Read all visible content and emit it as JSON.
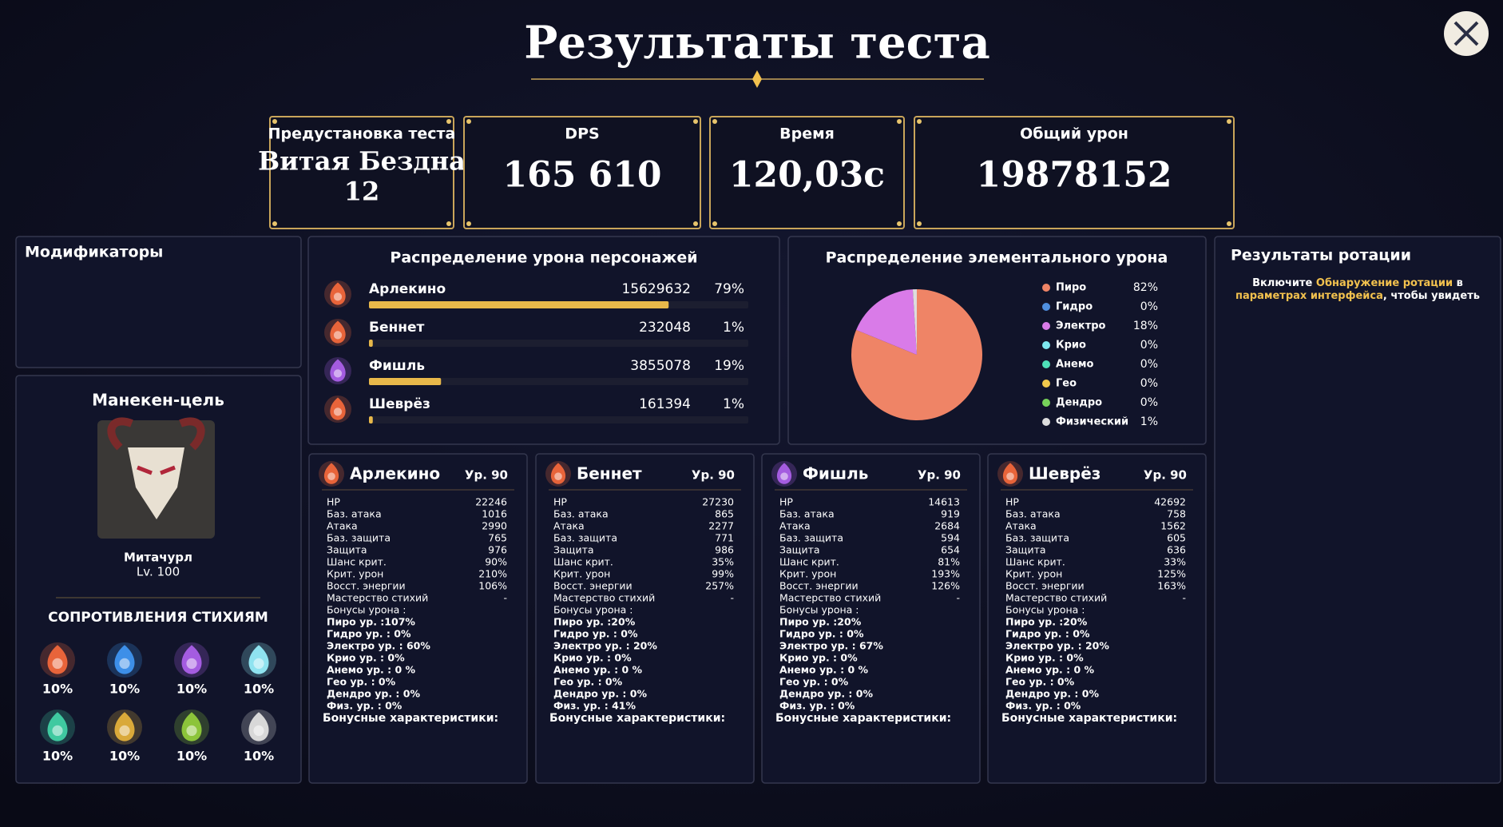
{
  "header": {
    "title": "Результаты теста"
  },
  "summary": [
    {
      "label": "Предустановка теста",
      "value": [
        "Витая Бездна",
        "12"
      ]
    },
    {
      "label": "DPS",
      "value": "165 610"
    },
    {
      "label": "Время",
      "value": "120,03с"
    },
    {
      "label": "Общий урон",
      "value": "19878152"
    }
  ],
  "modifiers": {
    "title": "Модификаторы"
  },
  "target": {
    "title": "Манекен-цель",
    "name": "Митачурл",
    "level": "Lv. 100",
    "resistances_title": "СОПРОТИВЛЕНИЯ СТИХИЯМ",
    "resistances": [
      {
        "label": "10%",
        "color": "#e8643a"
      },
      {
        "label": "10%",
        "color": "#3d8fe8"
      },
      {
        "label": "10%",
        "color": "#a45ce0"
      },
      {
        "label": "10%",
        "color": "#8fe3f0"
      },
      {
        "label": "10%",
        "color": "#3fc9a0"
      },
      {
        "label": "10%",
        "color": "#d9a93a"
      },
      {
        "label": "10%",
        "color": "#8cc43a"
      },
      {
        "label": "10%",
        "color": "#d8d8d8"
      }
    ]
  },
  "damage": {
    "title": "Распределение урона персонажей",
    "bar_color": "#e8b84a",
    "rows": [
      {
        "name": "Арлекино",
        "damage": "15629632",
        "value": 79,
        "value_label": "79%",
        "icon_color": "#e8643a"
      },
      {
        "name": "Беннет",
        "damage": "232048",
        "value": 1,
        "value_label": "1%",
        "icon_color": "#e8643a"
      },
      {
        "name": "Фишль",
        "damage": "3855078",
        "value": 19,
        "value_label": "19%",
        "icon_color": "#a45ce0"
      },
      {
        "name": "Шеврёз",
        "damage": "161394",
        "value": 1,
        "value_label": "1%",
        "icon_color": "#e8643a"
      }
    ]
  },
  "elements": {
    "title": "Распределение элементального урона",
    "type": "pie",
    "names": [
      "Пиро",
      "Гидро",
      "Электро",
      "Крио",
      "Анемо",
      "Гео",
      "Дендро",
      "Физический"
    ],
    "values": [
      82,
      0,
      18,
      0,
      0,
      0,
      0,
      1
    ],
    "value_labels": [
      "82%",
      "0%",
      "18%",
      "0%",
      "0%",
      "0%",
      "0%",
      "1%"
    ],
    "colors": [
      "#ef8466",
      "#4f8fe0",
      "#d97be8",
      "#7de8f0",
      "#4ee0b8",
      "#f2c94c",
      "#77d35a",
      "#dddddd"
    ]
  },
  "rotation": {
    "title": "Результаты ротации",
    "lines": [
      [
        {
          "text": "Включите ",
          "color": "#ffffff"
        },
        {
          "text": "Обнаружение ротации",
          "color": "#f2c14e"
        },
        {
          "text": " в",
          "color": "#ffffff"
        }
      ],
      [
        {
          "text": "параметрах интерфейса",
          "color": "#f2c14e"
        },
        {
          "text": ", чтобы увидеть",
          "color": "#ffffff"
        }
      ]
    ]
  },
  "characters": [
    {
      "name": "Арлекино",
      "level": "Ур. 90",
      "icon_color": "#e8643a",
      "stats": [
        [
          "HP",
          "22246"
        ],
        [
          "Баз. атака",
          "1016"
        ],
        [
          "Атака",
          "2990"
        ],
        [
          "Баз. защита",
          "765"
        ],
        [
          "Защита",
          "976"
        ],
        [
          "Шанс крит.",
          "90%"
        ],
        [
          "Крит. урон",
          "210%"
        ],
        [
          "Восст. энергии",
          "106%"
        ],
        [
          "Мастерство стихий",
          "-"
        ]
      ],
      "bonus_title": "Бонусы урона :",
      "bonuses": [
        {
          "text": "Пиро ур. :107%",
          "color": "#ff7d6e"
        },
        {
          "text": "Гидро ур. : 0%",
          "color": "#72b6ff"
        },
        {
          "text": "Электро ур. : 60%",
          "color": "#e57bff"
        },
        {
          "text": "Крио ур. : 0%",
          "color": "#a5ecff"
        },
        {
          "text": "Анемо ур. : 0 %",
          "color": "#63e8c3"
        },
        {
          "text": "Гео ур. : 0%",
          "color": "#f5c442"
        },
        {
          "text": "Дендро ур. : 0%",
          "color": "#9de25c"
        },
        {
          "text": "Физ. ур. : 0%",
          "color": "#dddddd"
        }
      ],
      "extra_title": "Бонусные характеристики:"
    },
    {
      "name": "Беннет",
      "level": "Ур. 90",
      "icon_color": "#e8643a",
      "stats": [
        [
          "HP",
          "27230"
        ],
        [
          "Баз. атака",
          "865"
        ],
        [
          "Атака",
          "2277"
        ],
        [
          "Баз. защита",
          "771"
        ],
        [
          "Защита",
          "986"
        ],
        [
          "Шанс крит.",
          "35%"
        ],
        [
          "Крит. урон",
          "99%"
        ],
        [
          "Восст. энергии",
          "257%"
        ],
        [
          "Мастерство стихий",
          "-"
        ]
      ],
      "bonus_title": "Бонусы урона :",
      "bonuses": [
        {
          "text": "Пиро ур. :20%",
          "color": "#ff7d6e"
        },
        {
          "text": "Гидро ур. : 0%",
          "color": "#72b6ff"
        },
        {
          "text": "Электро ур. : 20%",
          "color": "#e57bff"
        },
        {
          "text": "Крио ур. : 0%",
          "color": "#a5ecff"
        },
        {
          "text": "Анемо ур. : 0 %",
          "color": "#63e8c3"
        },
        {
          "text": "Гео ур. : 0%",
          "color": "#f5c442"
        },
        {
          "text": "Дендро ур. : 0%",
          "color": "#9de25c"
        },
        {
          "text": "Физ. ур. : 41%",
          "color": "#dddddd"
        }
      ],
      "extra_title": "Бонусные характеристики:"
    },
    {
      "name": "Фишль",
      "level": "Ур. 90",
      "icon_color": "#a45ce0",
      "stats": [
        [
          "HP",
          "14613"
        ],
        [
          "Баз. атака",
          "919"
        ],
        [
          "Атака",
          "2684"
        ],
        [
          "Баз. защита",
          "594"
        ],
        [
          "Защита",
          "654"
        ],
        [
          "Шанс крит.",
          "81%"
        ],
        [
          "Крит. урон",
          "193%"
        ],
        [
          "Восст. энергии",
          "126%"
        ],
        [
          "Мастерство стихий",
          "-"
        ]
      ],
      "bonus_title": "Бонусы урона :",
      "bonuses": [
        {
          "text": "Пиро ур. :20%",
          "color": "#ff7d6e"
        },
        {
          "text": "Гидро ур. : 0%",
          "color": "#72b6ff"
        },
        {
          "text": "Электро ур. : 67%",
          "color": "#e57bff"
        },
        {
          "text": "Крио ур. : 0%",
          "color": "#a5ecff"
        },
        {
          "text": "Анемо ур. : 0 %",
          "color": "#63e8c3"
        },
        {
          "text": "Гео ур. : 0%",
          "color": "#f5c442"
        },
        {
          "text": "Дендро ур. : 0%",
          "color": "#9de25c"
        },
        {
          "text": "Физ. ур. : 0%",
          "color": "#dddddd"
        }
      ],
      "extra_title": "Бонусные характеристики:"
    },
    {
      "name": "Шеврёз",
      "level": "Ур. 90",
      "icon_color": "#e8643a",
      "stats": [
        [
          "HP",
          "42692"
        ],
        [
          "Баз. атака",
          "758"
        ],
        [
          "Атака",
          "1562"
        ],
        [
          "Баз. защита",
          "605"
        ],
        [
          "Защита",
          "636"
        ],
        [
          "Шанс крит.",
          "33%"
        ],
        [
          "Крит. урон",
          "125%"
        ],
        [
          "Восст. энергии",
          "163%"
        ],
        [
          "Мастерство стихий",
          "-"
        ]
      ],
      "bonus_title": "Бонусы урона :",
      "bonuses": [
        {
          "text": "Пиро ур. :20%",
          "color": "#ff7d6e"
        },
        {
          "text": "Гидро ур. : 0%",
          "color": "#72b6ff"
        },
        {
          "text": "Электро ур. : 20%",
          "color": "#e57bff"
        },
        {
          "text": "Крио ур. : 0%",
          "color": "#a5ecff"
        },
        {
          "text": "Анемо ур. : 0 %",
          "color": "#63e8c3"
        },
        {
          "text": "Гео ур. : 0%",
          "color": "#f5c442"
        },
        {
          "text": "Дендро ур. : 0%",
          "color": "#9de25c"
        },
        {
          "text": "Физ. ур. : 0%",
          "color": "#dddddd"
        }
      ],
      "extra_title": "Бонусные характеристики:"
    }
  ]
}
